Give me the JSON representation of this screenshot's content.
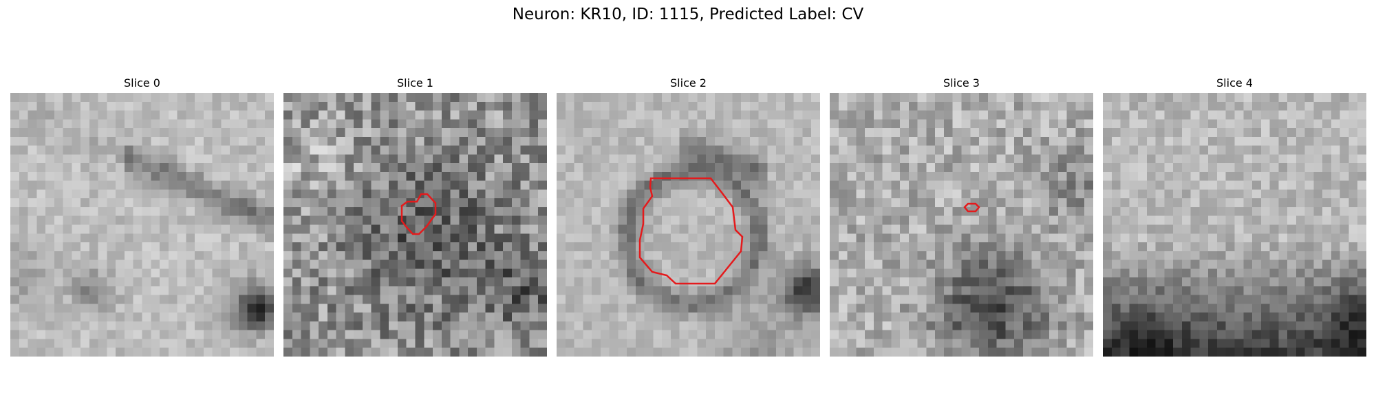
{
  "figure": {
    "title": "Neuron: KR10, ID: 1115, Predicted Label: CV"
  },
  "slices": [
    {
      "title": "Slice 0",
      "has_roi": false
    },
    {
      "title": "Slice 1",
      "has_roi": true
    },
    {
      "title": "Slice 2",
      "has_roi": true
    },
    {
      "title": "Slice 3",
      "has_roi": true
    },
    {
      "title": "Slice 4",
      "has_roi": false
    }
  ],
  "colors": {
    "roi_outline": "#e41a1c",
    "colormap": "grayscale"
  }
}
